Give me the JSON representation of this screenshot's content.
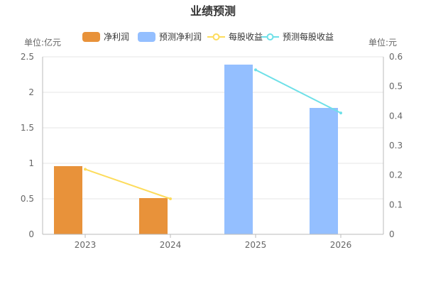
{
  "chart_data": {
    "type": "bar",
    "title": "业绩预测",
    "categories": [
      "2023",
      "2024",
      "2025",
      "2026"
    ],
    "left_axis": {
      "unit_label": "单位:亿元",
      "ticks": [
        "0",
        "0.5",
        "1",
        "1.5",
        "2",
        "2.5"
      ],
      "ylim": [
        0,
        2.5
      ]
    },
    "right_axis": {
      "unit_label": "单位:元",
      "ticks": [
        "0",
        "0.1",
        "0.2",
        "0.3",
        "0.4",
        "0.5",
        "0.6"
      ],
      "ylim": [
        0,
        0.6
      ]
    },
    "legend_position": "top",
    "series": [
      {
        "name": "净利润",
        "kind": "bar",
        "axis": "left",
        "color": "#e8923a",
        "values": [
          0.96,
          0.51,
          null,
          null
        ]
      },
      {
        "name": "预测净利润",
        "kind": "bar",
        "axis": "left",
        "color": "#94bfff",
        "values": [
          null,
          null,
          2.39,
          1.78
        ]
      },
      {
        "name": "每股收益",
        "kind": "line",
        "axis": "right",
        "color": "#fddc5c",
        "values": [
          0.22,
          0.12,
          null,
          null
        ]
      },
      {
        "name": "预测每股收益",
        "kind": "line",
        "axis": "right",
        "color": "#6ee0e8",
        "values": [
          null,
          null,
          0.556,
          0.41
        ]
      }
    ]
  }
}
